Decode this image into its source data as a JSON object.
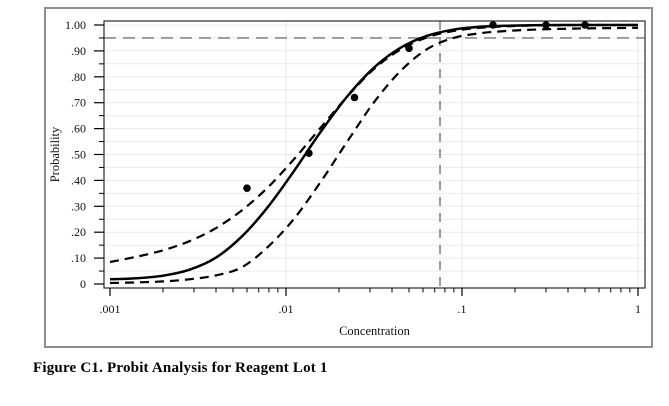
{
  "figure": {
    "caption": "Figure C1. Probit Analysis for Reagent Lot 1"
  },
  "colors": {
    "curve": "#000000",
    "points": "#000000",
    "reference_line": "#8a8a8a",
    "grid_horizontal": "#ececec",
    "grid_vertical": "#e3e3e3",
    "plot_border": "#2a2a2a",
    "frame_border": "#8f8f8f",
    "background": "#ffffff",
    "text": "#111111"
  },
  "chart_data": {
    "type": "line",
    "title": "",
    "xlabel": "Concentration",
    "ylabel": "Probability",
    "x_scale": "log10",
    "xlim": [
      0.001,
      1
    ],
    "ylim": [
      -0.016,
      1.043
    ],
    "grid": {
      "horizontal_step": 0.05,
      "vertical_at_decades": [
        0.01,
        0.1,
        1
      ],
      "enabled": true
    },
    "x_ticks": [
      {
        "value": 0.001,
        "label": ".001"
      },
      {
        "value": 0.01,
        "label": ".01"
      },
      {
        "value": 0.1,
        "label": ".1"
      },
      {
        "value": 1,
        "label": "1"
      }
    ],
    "x_minor_tick_multipliers": [
      2,
      3,
      4,
      5,
      6,
      7,
      8,
      9
    ],
    "y_ticks": [
      {
        "value": 0.0,
        "label": "0"
      },
      {
        "value": 0.1,
        "label": ".10"
      },
      {
        "value": 0.2,
        "label": ".20"
      },
      {
        "value": 0.3,
        "label": ".30"
      },
      {
        "value": 0.4,
        "label": ".40"
      },
      {
        "value": 0.5,
        "label": ".50"
      },
      {
        "value": 0.6,
        "label": ".60"
      },
      {
        "value": 0.7,
        "label": ".70"
      },
      {
        "value": 0.8,
        "label": ".80"
      },
      {
        "value": 0.9,
        "label": ".90"
      },
      {
        "value": 1.0,
        "label": "1.00"
      }
    ],
    "y_minor_step": 0.05,
    "reference_lines": [
      {
        "axis": "y",
        "value": 0.95,
        "style": "dashed",
        "meaning": "95% probability level"
      },
      {
        "axis": "x",
        "value": 0.075,
        "style": "dashed",
        "meaning": "concentration at 95% probability"
      }
    ],
    "x_samples": [
      0.001,
      0.00141,
      0.002,
      0.00282,
      0.00398,
      0.00562,
      0.00794,
      0.0112,
      0.0158,
      0.0224,
      0.0316,
      0.0447,
      0.0631,
      0.0891,
      0.126,
      0.178,
      0.251,
      0.355,
      0.501,
      0.708,
      1.0
    ],
    "series": [
      {
        "name": "probit_fit",
        "style": "solid",
        "p": [
          0.018,
          0.022,
          0.032,
          0.055,
          0.101,
          0.184,
          0.3,
          0.44,
          0.589,
          0.726,
          0.835,
          0.912,
          0.958,
          0.982,
          0.993,
          0.997,
          0.999,
          1.0,
          1.0,
          1.0,
          1.0
        ]
      },
      {
        "name": "upper_confidence_band",
        "style": "dashed",
        "p": [
          0.085,
          0.105,
          0.13,
          0.165,
          0.215,
          0.285,
          0.375,
          0.485,
          0.605,
          0.725,
          0.83,
          0.905,
          0.952,
          0.977,
          0.989,
          0.995,
          0.998,
          0.999,
          1.0,
          1.0,
          1.0
        ]
      },
      {
        "name": "lower_confidence_band",
        "style": "dashed",
        "p": [
          0.004,
          0.006,
          0.01,
          0.018,
          0.033,
          0.065,
          0.145,
          0.255,
          0.396,
          0.552,
          0.701,
          0.822,
          0.906,
          0.95,
          0.968,
          0.977,
          0.982,
          0.985,
          0.987,
          0.988,
          0.989
        ]
      }
    ],
    "observed_points": {
      "name": "observed_proportions",
      "marker": "filled_circle",
      "points": [
        [
          0.006,
          0.37
        ],
        [
          0.0135,
          0.505
        ],
        [
          0.0245,
          0.72
        ],
        [
          0.05,
          0.91
        ],
        [
          0.15,
          1.0
        ],
        [
          0.3,
          1.0
        ],
        [
          0.5,
          1.0
        ]
      ]
    },
    "legend": null
  }
}
